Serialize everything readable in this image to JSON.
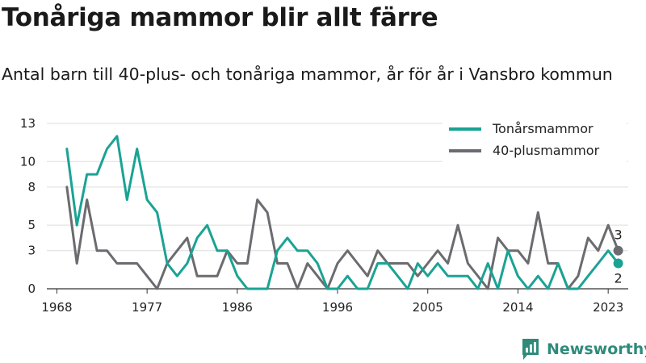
{
  "title": "Tonåriga mammor blir allt färre",
  "subtitle": "Antal barn till 40-plus- och tonåriga mammor, år för år i Vansbro kommun",
  "brand": {
    "name": "Newsworthy",
    "icon": "newsworthy-logo-icon",
    "color": "#2e8b7a"
  },
  "chart_data": {
    "type": "line",
    "x": [
      1969,
      1970,
      1971,
      1972,
      1973,
      1974,
      1975,
      1976,
      1977,
      1978,
      1979,
      1980,
      1981,
      1982,
      1983,
      1984,
      1985,
      1986,
      1987,
      1988,
      1989,
      1990,
      1991,
      1992,
      1993,
      1994,
      1995,
      1996,
      1997,
      1998,
      1999,
      2000,
      2001,
      2002,
      2003,
      2004,
      2005,
      2006,
      2007,
      2008,
      2009,
      2010,
      2011,
      2012,
      2013,
      2014,
      2015,
      2016,
      2017,
      2018,
      2019,
      2020,
      2021,
      2022,
      2023,
      2024
    ],
    "series": [
      {
        "name": "Tonårsmammor",
        "color": "#1aa394",
        "values": [
          11,
          5,
          9,
          9,
          11,
          12,
          7,
          11,
          7,
          6,
          2,
          1,
          2,
          4,
          5,
          3,
          3,
          1,
          0,
          0,
          0,
          3,
          4,
          3,
          3,
          2,
          0,
          0,
          1,
          0,
          0,
          2,
          2,
          1,
          0,
          2,
          1,
          2,
          1,
          1,
          1,
          0,
          2,
          0,
          3,
          1,
          0,
          1,
          0,
          2,
          0,
          0,
          1,
          2,
          3,
          2
        ]
      },
      {
        "name": "40-plusmammor",
        "color": "#6b6b70",
        "values": [
          8,
          2,
          7,
          3,
          3,
          2,
          2,
          2,
          1,
          0,
          2,
          3,
          4,
          1,
          1,
          1,
          3,
          2,
          2,
          7,
          6,
          2,
          2,
          0,
          2,
          1,
          0,
          2,
          3,
          2,
          1,
          3,
          2,
          2,
          2,
          1,
          2,
          3,
          2,
          5,
          2,
          1,
          0,
          4,
          3,
          3,
          2,
          6,
          2,
          2,
          0,
          1,
          4,
          3,
          5,
          3
        ]
      }
    ],
    "end_labels": [
      "2",
      "3"
    ],
    "xticks": [
      1968,
      1977,
      1986,
      1996,
      2005,
      2014,
      2023
    ],
    "xtick_labels": [
      "1968",
      "1977",
      "1986",
      "1996",
      "2005",
      "2014",
      "2023"
    ],
    "yticks": [
      0,
      3,
      5,
      8,
      10,
      13
    ],
    "ytick_labels": [
      "0",
      "3",
      "5",
      "8",
      "10",
      "13"
    ],
    "xlim": [
      1967,
      2025
    ],
    "ylim": [
      0,
      13
    ],
    "grid": true,
    "legend_position": "top-right"
  }
}
